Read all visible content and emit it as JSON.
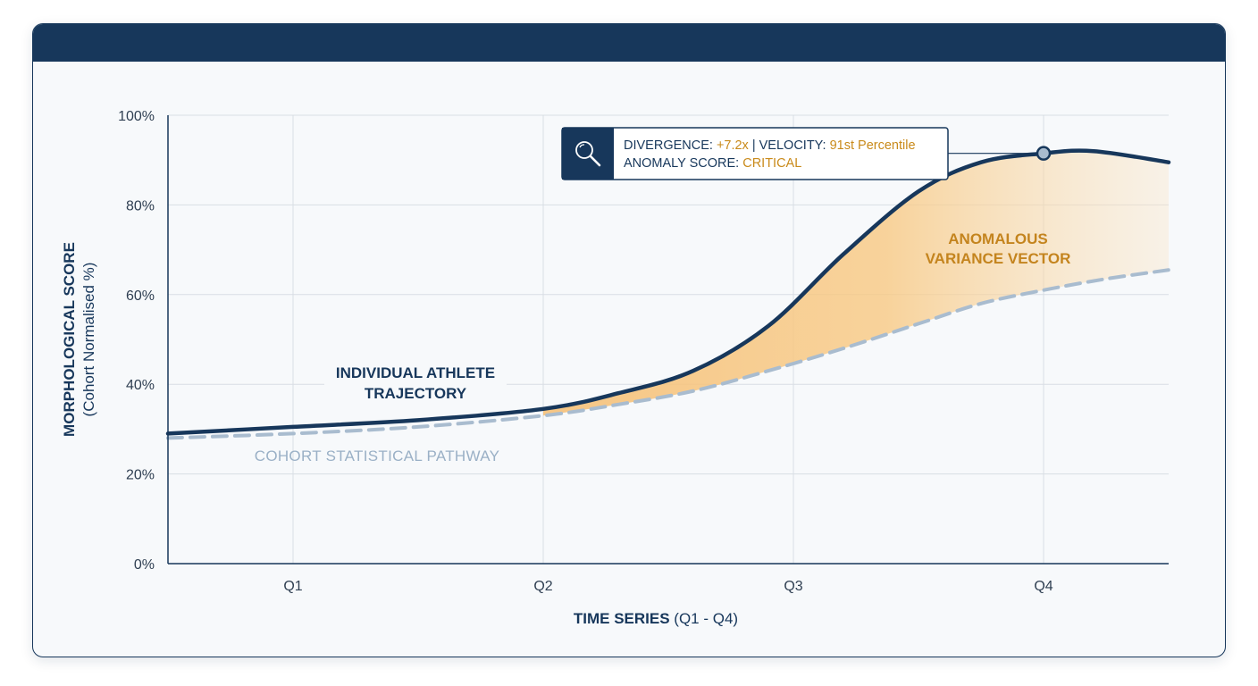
{
  "chart_data": {
    "type": "line",
    "x": [
      "Q1",
      "Q2",
      "Q3",
      "Q4"
    ],
    "xlabel_bold": "TIME SERIES",
    "xlabel_rest": " (Q1 - Q4)",
    "ylabel_main": "MORPHOLOGICAL SCORE",
    "ylabel_sub": "(Cohort Normalised %)",
    "ylim": [
      0,
      100
    ],
    "yticks": [
      "0%",
      "20%",
      "40%",
      "60%",
      "80%",
      "100%"
    ],
    "xlim": [
      0.5,
      4.5
    ],
    "grid": true,
    "series": [
      {
        "name_line1": "INDIVIDUAL ATHLETE",
        "name_line2": "TRAJECTORY",
        "color": "#17375b",
        "points": [
          [
            0.5,
            29
          ],
          [
            1,
            30.5
          ],
          [
            1.5,
            32
          ],
          [
            2,
            34.5
          ],
          [
            2.3,
            38
          ],
          [
            2.6,
            43
          ],
          [
            2.9,
            53
          ],
          [
            3.2,
            69
          ],
          [
            3.5,
            83
          ],
          [
            3.75,
            89.5
          ],
          [
            4,
            91.5
          ],
          [
            4.2,
            92
          ],
          [
            4.5,
            89.5
          ]
        ]
      },
      {
        "name": "COHORT STATISTICAL PATHWAY",
        "color": "#a9bccf",
        "style": "dashed",
        "points": [
          [
            0.5,
            28
          ],
          [
            1,
            29
          ],
          [
            1.5,
            30.5
          ],
          [
            2,
            33
          ],
          [
            2.3,
            35.5
          ],
          [
            2.6,
            38.5
          ],
          [
            2.9,
            43
          ],
          [
            3.2,
            48
          ],
          [
            3.5,
            53.5
          ],
          [
            3.75,
            58
          ],
          [
            4,
            61
          ],
          [
            4.25,
            63.5
          ],
          [
            4.5,
            65.5
          ]
        ]
      }
    ],
    "shaded_region_label_line1": "ANOMALOUS",
    "shaded_region_label_line2": "VARIANCE VECTOR",
    "shaded_color": "#f6c077",
    "marker": {
      "x": 4,
      "y": 91.5
    },
    "tooltip": {
      "icon": "magnifier-icon",
      "divergence_label": "DIVERGENCE: ",
      "divergence_value": "+7.2x",
      "separator": " | VELOCITY: ",
      "velocity_value": "91st Percentile",
      "anomaly_label": "ANOMALY SCORE: ",
      "anomaly_value": "CRITICAL"
    }
  }
}
